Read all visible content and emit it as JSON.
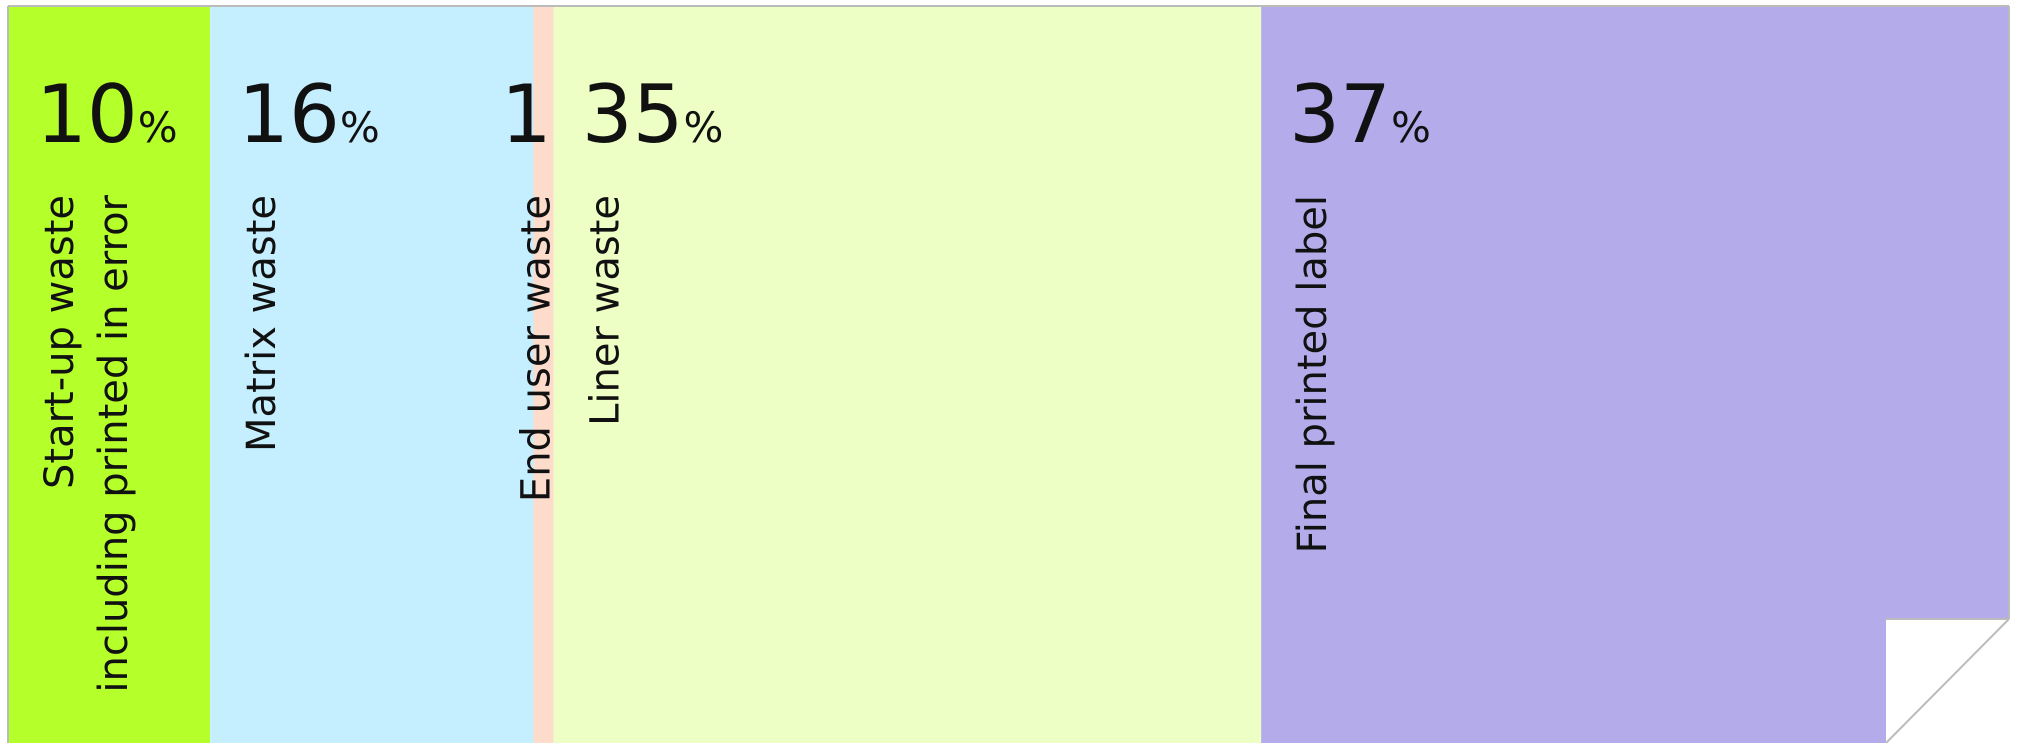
{
  "chart_data": {
    "type": "stacked-bar-100",
    "categories": [
      [
        "Start-up waste",
        "including printed in error"
      ],
      [
        "Matrix waste"
      ],
      [
        "End user waste"
      ],
      [
        "Liner waste"
      ],
      [
        "Final printed label"
      ]
    ],
    "values": [
      10,
      16,
      1,
      35,
      37
    ],
    "value_labels": [
      "10%",
      "16%",
      "1",
      "35%",
      "37%"
    ],
    "colors": [
      "#b5ff2b",
      "#c5effe",
      "#fddccb",
      "#eeffc5",
      "#b4abea"
    ]
  }
}
